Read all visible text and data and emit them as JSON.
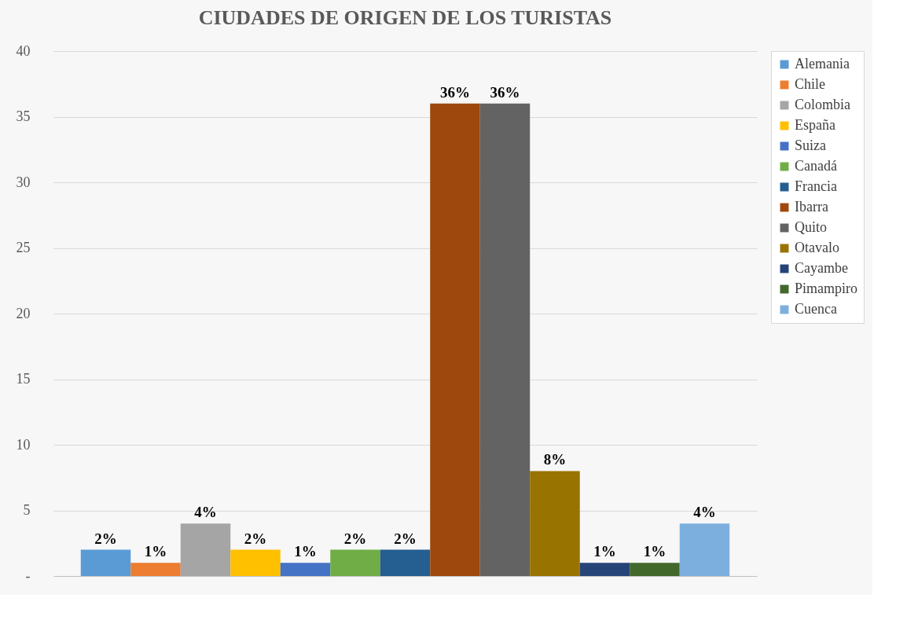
{
  "chart_data": {
    "type": "bar",
    "title": "CIUDADES DE ORIGEN DE LOS TURISTAS",
    "categories": [
      null
    ],
    "series": [
      {
        "name": "Alemania",
        "color": "#5b9bd5",
        "values": [
          2
        ],
        "value_labels": [
          "2%"
        ]
      },
      {
        "name": "Chile",
        "color": "#ed7d31",
        "values": [
          1
        ],
        "value_labels": [
          "1%"
        ]
      },
      {
        "name": "Colombia",
        "color": "#a5a5a5",
        "values": [
          4
        ],
        "value_labels": [
          "4%"
        ]
      },
      {
        "name": "España",
        "color": "#ffc000",
        "values": [
          2
        ],
        "value_labels": [
          "2%"
        ]
      },
      {
        "name": "Suiza",
        "color": "#4472c4",
        "values": [
          1
        ],
        "value_labels": [
          "1%"
        ]
      },
      {
        "name": "Canadá",
        "color": "#70ad47",
        "values": [
          2
        ],
        "value_labels": [
          "2%"
        ]
      },
      {
        "name": "Francia",
        "color": "#255e91",
        "values": [
          2
        ],
        "value_labels": [
          "2%"
        ]
      },
      {
        "name": "Ibarra",
        "color": "#9e480e",
        "values": [
          36
        ],
        "value_labels": [
          "36%"
        ]
      },
      {
        "name": "Quito",
        "color": "#636363",
        "values": [
          36
        ],
        "value_labels": [
          "36%"
        ]
      },
      {
        "name": "Otavalo",
        "color": "#997300",
        "values": [
          8
        ],
        "value_labels": [
          "8%"
        ]
      },
      {
        "name": "Cayambe",
        "color": "#264478",
        "values": [
          1
        ],
        "value_labels": [
          "1%"
        ]
      },
      {
        "name": "Pimampiro",
        "color": "#43682b",
        "values": [
          1
        ],
        "value_labels": [
          "1%"
        ]
      },
      {
        "name": "Cuenca",
        "color": "#7cafdd",
        "values": [
          4
        ],
        "value_labels": [
          "4%"
        ]
      }
    ],
    "ylim": [
      0,
      40
    ],
    "yticks": [
      {
        "value": 0,
        "label": "-"
      },
      5,
      10,
      15,
      20,
      25,
      30,
      35,
      40
    ],
    "grid": "y",
    "legend": "right"
  }
}
